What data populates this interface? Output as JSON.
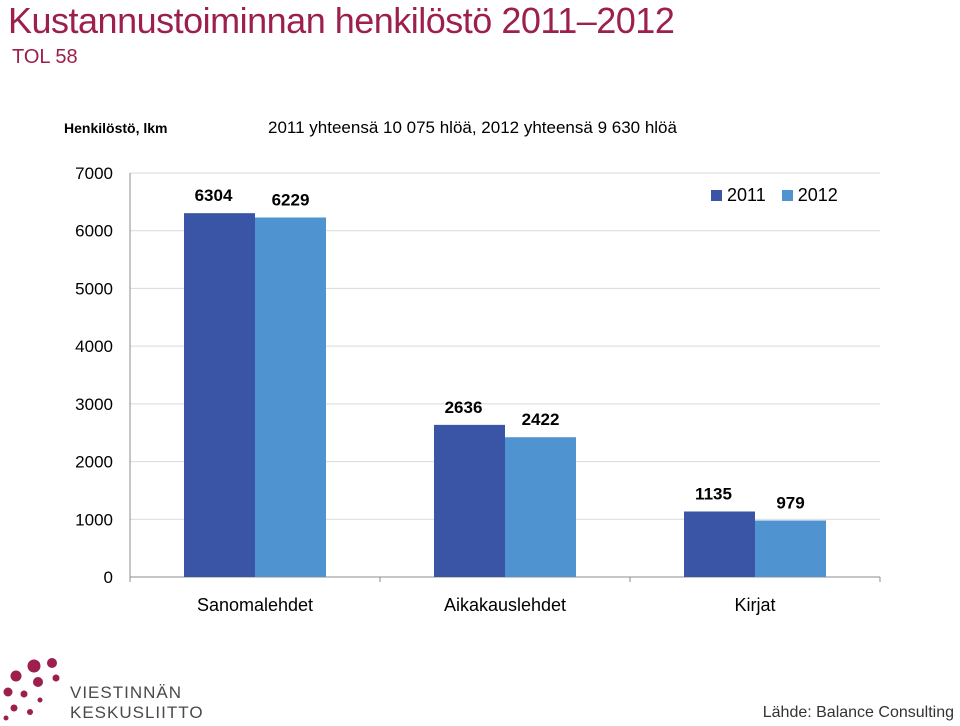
{
  "header": {
    "title": "Kustannustoiminnan henkilöstö 2011–2012",
    "subtitle": "TOL 58"
  },
  "note": "2011 yhteensä 10 075 hlöä, 2012 yhteensä 9 630 hlöä",
  "chart_data": {
    "type": "bar",
    "ylabel": "Henkilöstö, lkm",
    "categories": [
      "Sanomalehdet",
      "Aikakauslehdet",
      "Kirjat"
    ],
    "series": [
      {
        "name": "2011",
        "values": [
          6304,
          2636,
          1135
        ],
        "color": "#3b55a6"
      },
      {
        "name": "2012",
        "values": [
          6229,
          2422,
          979
        ],
        "color": "#4f93d0"
      }
    ],
    "ylim": [
      0,
      7000
    ],
    "yticks": [
      0,
      1000,
      2000,
      3000,
      4000,
      5000,
      6000,
      7000
    ],
    "grid": true,
    "legend_position": "top-right"
  },
  "logo": {
    "line1": "VIESTINNÄN",
    "line2": "KESKUSLIITTO",
    "color": "#9c1f4d"
  },
  "source": "Lähde: Balance Consulting"
}
